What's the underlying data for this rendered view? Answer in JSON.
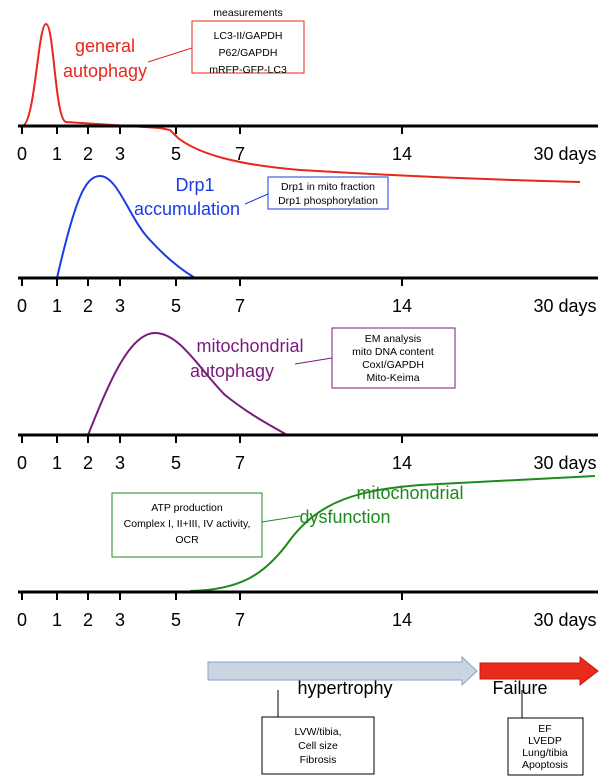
{
  "axis_ticks": [
    "0",
    "1",
    "2",
    "3",
    "5",
    "7",
    "14",
    "30 days"
  ],
  "panels": [
    {
      "title_lines": [
        "general",
        "autophagy"
      ],
      "box_header": "measurements",
      "box_lines": [
        "LC3-II/GAPDH",
        "P62/GAPDH",
        "mRFP-GFP-LC3"
      ]
    },
    {
      "title_lines": [
        "Drp1",
        "accumulation"
      ],
      "box_lines": [
        "Drp1 in mito fraction",
        "Drp1 phosphorylation"
      ]
    },
    {
      "title_lines": [
        "mitochondrial",
        "autophagy"
      ],
      "box_lines": [
        "EM analysis",
        "mito DNA content",
        "CoxI/GAPDH",
        "Mito-Keima"
      ]
    },
    {
      "title_lines": [
        "mitochondrial",
        "dysfunction"
      ],
      "box_lines": [
        "ATP production",
        "Complex I, II+III, IV activity,",
        "OCR"
      ]
    }
  ],
  "phases": [
    {
      "label": "hypertrophy",
      "box_lines": [
        "LVW/tibia,",
        "Cell size",
        "Fibrosis"
      ]
    },
    {
      "label": "Failure",
      "box_lines": [
        "EF",
        "LVEDP",
        "Lung/tibia",
        "Apoptosis"
      ]
    }
  ]
}
